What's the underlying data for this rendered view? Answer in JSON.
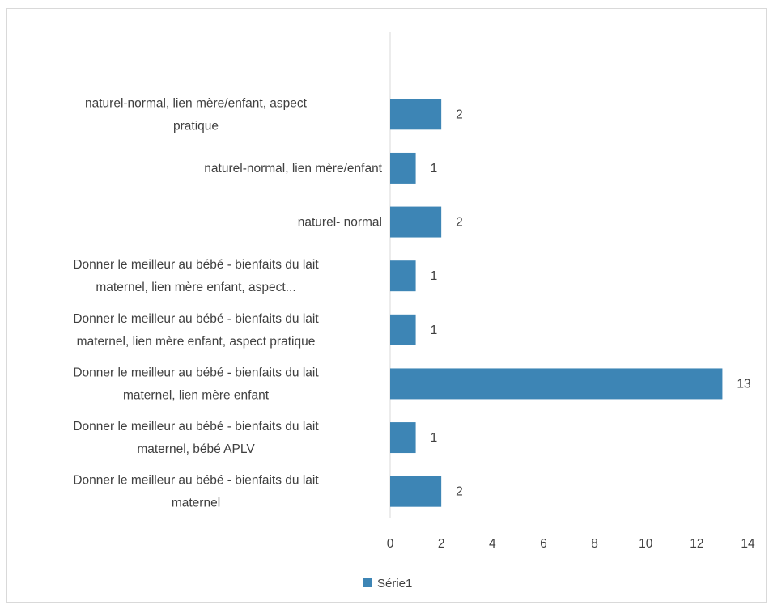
{
  "chart_data": {
    "type": "bar",
    "orientation": "horizontal",
    "categories": [
      [
        "naturel-normal, lien mère/enfant, aspect",
        "pratique"
      ],
      [
        "naturel-normal, lien mère/enfant"
      ],
      [
        "naturel- normal"
      ],
      [
        "Donner le meilleur au bébé - bienfaits du lait",
        "maternel, lien mère enfant, aspect..."
      ],
      [
        "Donner le meilleur au bébé - bienfaits du lait",
        "maternel, lien mère enfant, aspect pratique"
      ],
      [
        "Donner le meilleur au bébé - bienfaits du lait",
        "maternel, lien mère enfant"
      ],
      [
        "Donner le meilleur au bébé - bienfaits du lait",
        "maternel, bébé APLV"
      ],
      [
        "Donner le meilleur au bébé - bienfaits du lait",
        "maternel"
      ]
    ],
    "series": [
      {
        "name": "Série1",
        "values": [
          2,
          1,
          2,
          1,
          1,
          13,
          1,
          2
        ],
        "color": "#3d85b5"
      }
    ],
    "xlim": [
      0,
      14
    ],
    "xticks": [
      "0",
      "2",
      "4",
      "6",
      "8",
      "10",
      "12",
      "14"
    ],
    "grid": false,
    "data_labels": true,
    "legend_position": "bottom",
    "axis_color": "#d9d9d9"
  }
}
